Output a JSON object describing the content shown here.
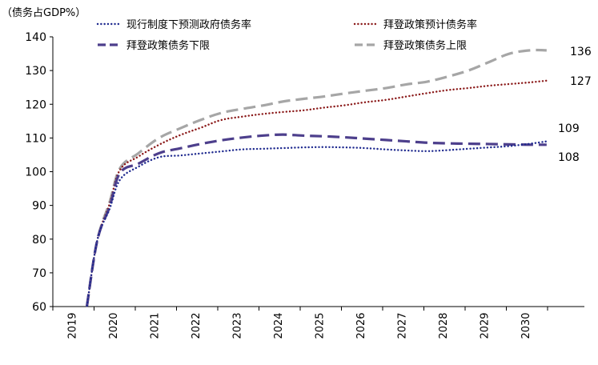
{
  "chart_data": {
    "type": "line",
    "unit_label": "（债务占GDP%）",
    "categories": [
      "2019",
      "2020",
      "2021",
      "2022",
      "2023",
      "2024",
      "2025",
      "2026",
      "2027",
      "2028",
      "2029",
      "2030"
    ],
    "ylim": [
      60,
      140
    ],
    "yticks": [
      60,
      70,
      80,
      90,
      100,
      110,
      120,
      130,
      140
    ],
    "grid": false,
    "series": [
      {
        "name": "现行制度下预测政府债务率",
        "color": "#1f2a8f",
        "style": "dotted",
        "x": [
          2019.75,
          2020.0,
          2020.3,
          2020.55,
          2021.0,
          2021.5,
          2022.0,
          2022.5,
          2023.0,
          2023.5,
          2024.0,
          2024.5,
          2025.0,
          2025.5,
          2026.0,
          2026.5,
          2027.0,
          2027.5,
          2028.0,
          2028.5,
          2029.0,
          2029.5,
          2030.0,
          2030.5,
          2030.9
        ],
        "values": [
          60.2,
          79.6,
          89.0,
          97.6,
          101.5,
          104.3,
          104.8,
          105.4,
          106.0,
          106.6,
          106.8,
          107.0,
          107.2,
          107.3,
          107.2,
          107.0,
          106.6,
          106.3,
          106.1,
          106.4,
          106.8,
          107.2,
          107.6,
          108.3,
          109.0
        ]
      },
      {
        "name": "拜登政策预计债务率",
        "color": "#8b1a1a",
        "style": "dotted",
        "x": [
          2019.75,
          2020.0,
          2020.3,
          2020.55,
          2021.0,
          2021.5,
          2022.0,
          2022.5,
          2023.0,
          2023.5,
          2024.0,
          2024.5,
          2025.0,
          2025.5,
          2026.0,
          2026.5,
          2027.0,
          2027.5,
          2028.0,
          2028.5,
          2029.0,
          2029.5,
          2030.0,
          2030.5,
          2030.9
        ],
        "values": [
          60.2,
          79.6,
          90.5,
          100.5,
          104.5,
          108.0,
          110.8,
          113.0,
          115.3,
          116.3,
          117.1,
          117.7,
          118.2,
          119.0,
          119.7,
          120.6,
          121.3,
          122.3,
          123.3,
          124.2,
          124.8,
          125.5,
          126.0,
          126.5,
          127.0
        ]
      },
      {
        "name": "拜登政策债务下限",
        "color": "#4d3f8c",
        "style": "dashed",
        "x": [
          2019.75,
          2020.0,
          2020.3,
          2020.55,
          2021.0,
          2021.5,
          2022.0,
          2022.5,
          2023.0,
          2023.5,
          2024.0,
          2024.5,
          2025.0,
          2025.5,
          2026.0,
          2026.5,
          2027.0,
          2027.5,
          2028.0,
          2028.5,
          2029.0,
          2029.5,
          2030.0,
          2030.5,
          2030.9
        ],
        "values": [
          60.2,
          79.6,
          89.6,
          99.6,
          102.4,
          105.5,
          106.9,
          108.2,
          109.3,
          110.1,
          110.7,
          111.0,
          110.7,
          110.5,
          110.2,
          109.8,
          109.4,
          109.0,
          108.6,
          108.4,
          108.3,
          108.2,
          108.1,
          108.0,
          108.0
        ]
      },
      {
        "name": "拜登政策债务上限",
        "color": "#a6a6a6",
        "style": "dashed",
        "x": [
          2019.75,
          2020.0,
          2020.3,
          2020.55,
          2021.0,
          2021.5,
          2022.0,
          2022.5,
          2023.0,
          2023.5,
          2024.0,
          2024.5,
          2025.0,
          2025.5,
          2026.0,
          2026.5,
          2027.0,
          2027.5,
          2028.0,
          2028.5,
          2029.0,
          2029.5,
          2030.0,
          2030.5,
          2030.9
        ],
        "values": [
          60.2,
          79.6,
          91.0,
          101.0,
          105.5,
          110.0,
          112.8,
          115.3,
          117.4,
          118.6,
          119.6,
          120.8,
          121.6,
          122.3,
          123.2,
          124.0,
          124.8,
          125.9,
          126.7,
          128.2,
          130.0,
          132.5,
          135.0,
          136.0,
          136.0
        ]
      }
    ],
    "end_labels": [
      "136",
      "127",
      "109",
      "108"
    ]
  }
}
